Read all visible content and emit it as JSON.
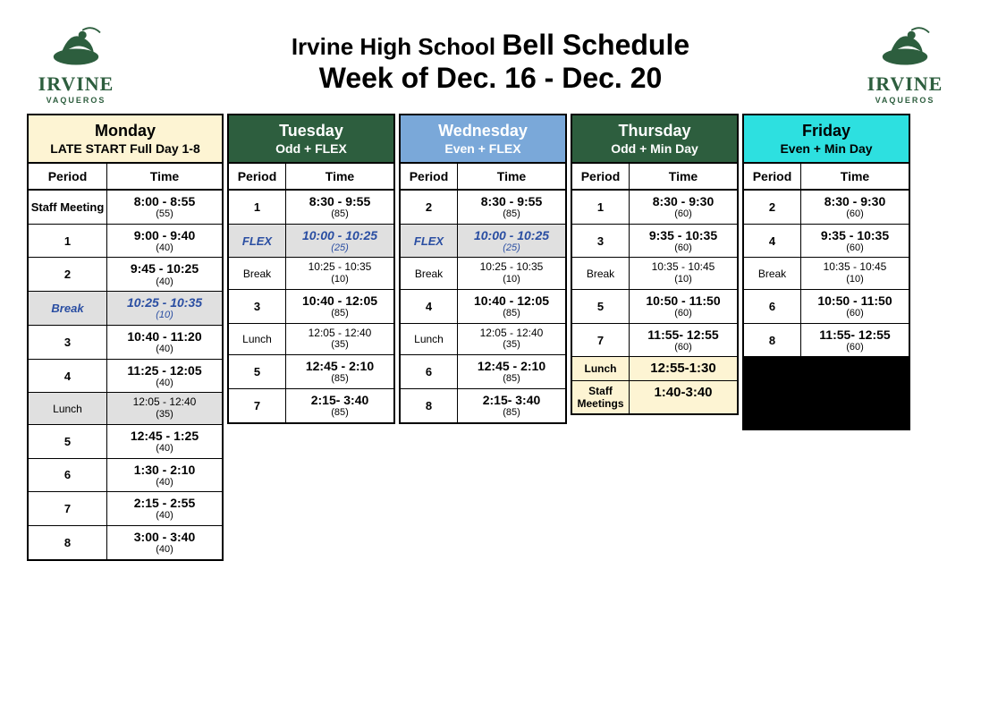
{
  "logo": {
    "text": "IRVINE",
    "sub": "VAQUEROS",
    "color": "#2d5e3e"
  },
  "title": {
    "prefix": "Irvine High School",
    "main": "Bell Schedule",
    "line2": "Week of Dec. 16 - Dec. 20"
  },
  "period_label": "Period",
  "time_label": "Time",
  "header_colors": {
    "monday": "#fdf4d3",
    "tuesday": "#2d5e3e",
    "wednesday": "#7aa8d9",
    "thursday": "#2d5e3e",
    "friday": "#2de0e0"
  },
  "days": {
    "monday": {
      "name": "Monday",
      "sub": "LATE START Full Day 1-8",
      "rows": [
        {
          "p": "Staff Meeting",
          "t": "8:00 - 8:55",
          "d": "(55)"
        },
        {
          "p": "1",
          "t": "9:00 - 9:40",
          "d": "(40)"
        },
        {
          "p": "2",
          "t": "9:45 - 10:25",
          "d": "(40)"
        },
        {
          "p": "Break",
          "t": "10:25 - 10:35",
          "d": "(10)",
          "style": "flex shade"
        },
        {
          "p": "3",
          "t": "10:40 - 11:20",
          "d": "(40)"
        },
        {
          "p": "4",
          "t": "11:25 - 12:05",
          "d": "(40)"
        },
        {
          "p": "Lunch",
          "t": "12:05 - 12:40",
          "d": "(35)",
          "style": "break shade"
        },
        {
          "p": "5",
          "t": "12:45 - 1:25",
          "d": "(40)"
        },
        {
          "p": "6",
          "t": "1:30 - 2:10",
          "d": "(40)"
        },
        {
          "p": "7",
          "t": "2:15 - 2:55",
          "d": "(40)"
        },
        {
          "p": "8",
          "t": "3:00 - 3:40",
          "d": "(40)"
        }
      ]
    },
    "tuesday": {
      "name": "Tuesday",
      "sub": "Odd + FLEX",
      "rows": [
        {
          "p": "1",
          "t": "8:30 - 9:55",
          "d": "(85)"
        },
        {
          "p": "FLEX",
          "t": "10:00 - 10:25",
          "d": "(25)",
          "style": "flex shade"
        },
        {
          "p": "Break",
          "t": "10:25 - 10:35",
          "d": "(10)",
          "style": "break"
        },
        {
          "p": "3",
          "t": "10:40 - 12:05",
          "d": "(85)"
        },
        {
          "p": "Lunch",
          "t": "12:05 - 12:40",
          "d": "(35)",
          "style": "break"
        },
        {
          "p": "5",
          "t": "12:45 - 2:10",
          "d": "(85)"
        },
        {
          "p": "7",
          "t": "2:15- 3:40",
          "d": "(85)"
        }
      ]
    },
    "wednesday": {
      "name": "Wednesday",
      "sub": "Even + FLEX",
      "rows": [
        {
          "p": "2",
          "t": "8:30 - 9:55",
          "d": "(85)"
        },
        {
          "p": "FLEX",
          "t": "10:00 - 10:25",
          "d": "(25)",
          "style": "flex shade"
        },
        {
          "p": "Break",
          "t": "10:25 - 10:35",
          "d": "(10)",
          "style": "break"
        },
        {
          "p": "4",
          "t": "10:40 - 12:05",
          "d": "(85)"
        },
        {
          "p": "Lunch",
          "t": "12:05 - 12:40",
          "d": "(35)",
          "style": "break"
        },
        {
          "p": "6",
          "t": "12:45 - 2:10",
          "d": "(85)"
        },
        {
          "p": "8",
          "t": "2:15- 3:40",
          "d": "(85)"
        }
      ]
    },
    "thursday": {
      "name": "Thursday",
      "sub": "Odd + Min Day",
      "rows": [
        {
          "p": "1",
          "t": "8:30 - 9:30",
          "d": "(60)"
        },
        {
          "p": "3",
          "t": "9:35 - 10:35",
          "d": "(60)"
        },
        {
          "p": "Break",
          "t": "10:35 - 10:45",
          "d": "(10)",
          "style": "break"
        },
        {
          "p": "5",
          "t": "10:50 - 11:50",
          "d": "(60)"
        },
        {
          "p": "7",
          "t": "11:55- 12:55",
          "d": "(60)"
        },
        {
          "p": "Lunch",
          "t": "12:55-1:30",
          "d": "",
          "style": "special yellow"
        },
        {
          "p": "Staff Meetings",
          "t": "1:40-3:40",
          "d": "",
          "style": "special yellow"
        }
      ]
    },
    "friday": {
      "name": "Friday",
      "sub": "Even + Min Day",
      "rows": [
        {
          "p": "2",
          "t": "8:30 - 9:30",
          "d": "(60)"
        },
        {
          "p": "4",
          "t": "9:35 - 10:35",
          "d": "(60)"
        },
        {
          "p": "Break",
          "t": "10:35 - 10:45",
          "d": "(10)",
          "style": "break"
        },
        {
          "p": "6",
          "t": "10:50 - 11:50",
          "d": "(60)"
        },
        {
          "p": "8",
          "t": "11:55- 12:55",
          "d": "(60)"
        }
      ],
      "blackout_rows": 2
    }
  }
}
